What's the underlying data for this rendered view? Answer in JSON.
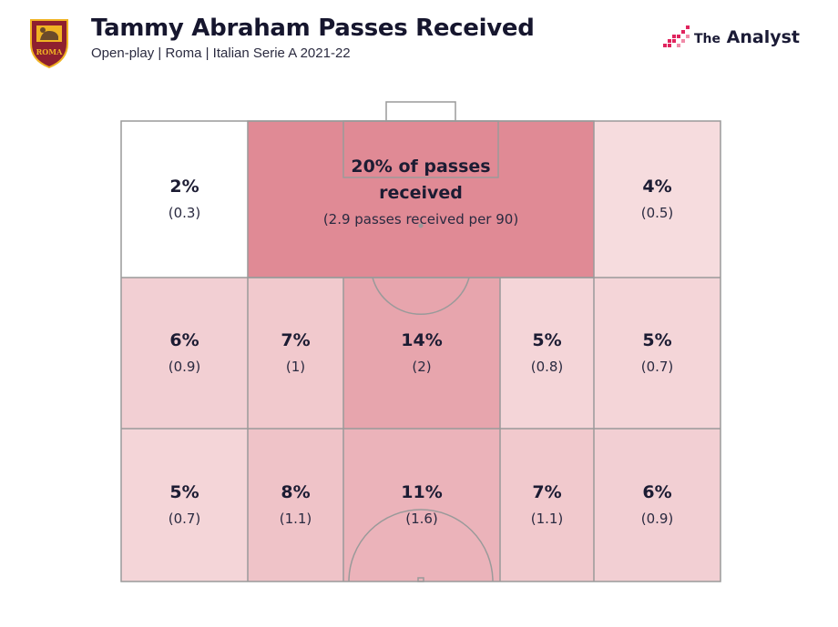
{
  "header": {
    "title": "Tammy Abraham Passes Received",
    "subtitle": "Open-play | Roma | Italian Serie A 2021-22",
    "crest_text": "ROMA",
    "brand_the": "The",
    "brand_name": "Analyst"
  },
  "colors": {
    "low": "#fbf0f0",
    "high": "#e08a95",
    "line": "#9a9a9a",
    "text": "#16162e",
    "crest_red": "#8e1f2f",
    "crest_gold": "#f0b323",
    "brand_pink": "#e0245e"
  },
  "chart_data": {
    "type": "heatmap",
    "title": "Tammy Abraham Passes Received",
    "subtitle": "Open-play | Roma | Italian Serie A 2021-22",
    "zones": [
      {
        "id": "top-left",
        "pct": "2%",
        "per90": "(0.3)",
        "value": 2,
        "per90_value": 0.3
      },
      {
        "id": "top-centre",
        "pct_line1": "20% of passes",
        "pct_line2": "received",
        "per90": "(2.9 passes received per 90)",
        "value": 20,
        "per90_value": 2.9
      },
      {
        "id": "top-right",
        "pct": "4%",
        "per90": "(0.5)",
        "value": 4,
        "per90_value": 0.5
      },
      {
        "id": "mid-1",
        "pct": "6%",
        "per90": "(0.9)",
        "value": 6,
        "per90_value": 0.9
      },
      {
        "id": "mid-2",
        "pct": "7%",
        "per90": "(1)",
        "value": 7,
        "per90_value": 1
      },
      {
        "id": "mid-3",
        "pct": "14%",
        "per90": "(2)",
        "value": 14,
        "per90_value": 2
      },
      {
        "id": "mid-4",
        "pct": "5%",
        "per90": "(0.8)",
        "value": 5,
        "per90_value": 0.8
      },
      {
        "id": "mid-5",
        "pct": "5%",
        "per90": "(0.7)",
        "value": 5,
        "per90_value": 0.7
      },
      {
        "id": "low-1",
        "pct": "5%",
        "per90": "(0.7)",
        "value": 5,
        "per90_value": 0.7
      },
      {
        "id": "low-2",
        "pct": "8%",
        "per90": "(1.1)",
        "value": 8,
        "per90_value": 1.1
      },
      {
        "id": "low-3",
        "pct": "11%",
        "per90": "(1.6)",
        "value": 11,
        "per90_value": 1.6
      },
      {
        "id": "low-4",
        "pct": "7%",
        "per90": "(1.1)",
        "value": 7,
        "per90_value": 1.1
      },
      {
        "id": "low-5",
        "pct": "6%",
        "per90": "(0.9)",
        "value": 6,
        "per90_value": 0.9
      }
    ]
  }
}
